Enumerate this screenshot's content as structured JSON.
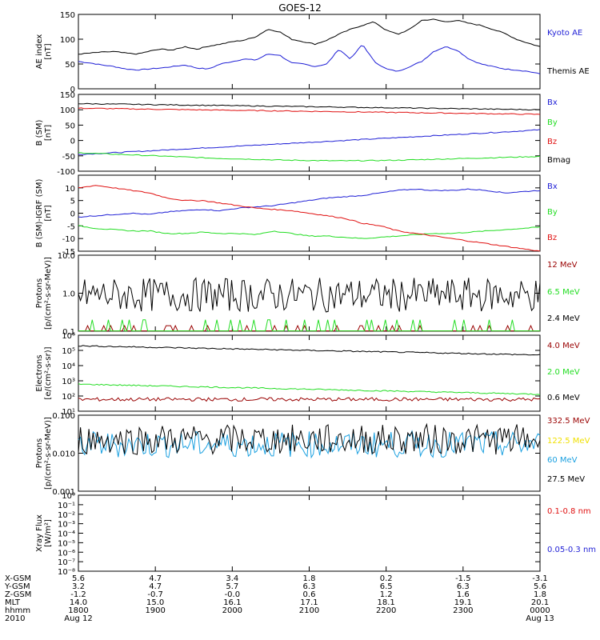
{
  "title": "GOES-12",
  "colors": {
    "black": "#000000",
    "blue": "#1f1fd6",
    "green": "#22dd22",
    "red": "#e01010",
    "darkred": "#990000",
    "cyan": "#1aa0e0",
    "yellow": "#f0e000"
  },
  "chart_data": [
    {
      "type": "line",
      "panel": "ae",
      "ylabel_lines": [
        "AE index",
        "[nT]"
      ],
      "ylim": [
        0,
        150
      ],
      "yticks": [
        "0",
        "50",
        "100",
        "150"
      ],
      "ytick_values": [
        0,
        50,
        100,
        150
      ],
      "series": [
        {
          "name": "Kyoto AE",
          "color": "blue",
          "y": [
            55,
            52,
            48,
            45,
            40,
            38,
            40,
            42,
            45,
            48,
            42,
            40,
            50,
            55,
            60,
            58,
            70,
            68,
            52,
            50,
            45,
            50,
            80,
            60,
            90,
            55,
            40,
            35,
            45,
            55,
            75,
            85,
            78,
            60,
            50,
            45,
            40,
            38,
            35,
            30
          ]
        },
        {
          "name": "Themis AE",
          "color": "black",
          "y": [
            70,
            72,
            74,
            75,
            72,
            70,
            76,
            80,
            78,
            85,
            80,
            86,
            90,
            95,
            98,
            105,
            120,
            115,
            100,
            95,
            90,
            98,
            110,
            120,
            128,
            135,
            118,
            110,
            120,
            138,
            140,
            135,
            138,
            132,
            128,
            120,
            112,
            100,
            92,
            85
          ]
        }
      ]
    },
    {
      "type": "line",
      "panel": "bsm",
      "ylabel_lines": [
        "B (SM)",
        "[nT]"
      ],
      "ylim": [
        -100,
        150
      ],
      "yticks": [
        "-100",
        "-50",
        "0",
        "50",
        "100",
        "150"
      ],
      "ytick_values": [
        -100,
        -50,
        0,
        50,
        100,
        150
      ],
      "series": [
        {
          "name": "Bx",
          "color": "blue",
          "y": [
            -45,
            -42,
            -38,
            -34,
            -30,
            -26,
            -22,
            -18,
            -14,
            -10,
            -6,
            -2,
            2,
            6,
            10,
            14,
            18,
            22,
            26,
            30,
            35
          ]
        },
        {
          "name": "By",
          "color": "green",
          "y": [
            -40,
            -43,
            -46,
            -49,
            -52,
            -55,
            -58,
            -60,
            -62,
            -64,
            -65,
            -66,
            -66,
            -65,
            -64,
            -62,
            -60,
            -58,
            -56,
            -54,
            -52
          ]
        },
        {
          "name": "Bz",
          "color": "red",
          "y": [
            105,
            104,
            103,
            102,
            101,
            100,
            99,
            98,
            97,
            96,
            95,
            94,
            93,
            92,
            91,
            90,
            89,
            88,
            87,
            86,
            85
          ]
        },
        {
          "name": "Bmag",
          "color": "black",
          "y": [
            120,
            119,
            118,
            117,
            116,
            115,
            114,
            113,
            112,
            111,
            110,
            109,
            108,
            107,
            106,
            105,
            104,
            103,
            102,
            101,
            100
          ]
        }
      ]
    },
    {
      "type": "line",
      "panel": "bsmigrf",
      "ylabel_lines": [
        "B (SM)-IGRF (SM)",
        "[nT]"
      ],
      "ylim": [
        -15,
        15
      ],
      "yticks": [
        "-15",
        "-10",
        "-5",
        "0",
        "5",
        "10"
      ],
      "ytick_values": [
        -15,
        -10,
        -5,
        0,
        5,
        10
      ],
      "series": [
        {
          "name": "Bx",
          "color": "blue",
          "y": [
            -1.5,
            -1,
            -0.5,
            0,
            -0.5,
            0.5,
            1,
            1.5,
            1,
            2,
            2.5,
            3,
            4,
            5,
            6,
            6.5,
            7,
            8,
            9,
            9.5,
            9,
            9,
            9.5,
            9,
            8,
            8.5,
            9
          ]
        },
        {
          "name": "By",
          "color": "green",
          "y": [
            -5,
            -6,
            -6.5,
            -7,
            -7,
            -8,
            -8,
            -7.5,
            -8,
            -8,
            -8.5,
            -7,
            -8,
            -9,
            -9,
            -9.5,
            -10,
            -9.5,
            -9,
            -8.5,
            -8,
            -8,
            -7.5,
            -7,
            -6.5,
            -6,
            -5.5
          ]
        },
        {
          "name": "Bz",
          "color": "red",
          "y": [
            10,
            11,
            10,
            9,
            8,
            6,
            5,
            5,
            4,
            3,
            2,
            1.5,
            1,
            0,
            -1,
            -2,
            -4,
            -5,
            -7,
            -8,
            -9,
            -10,
            -11,
            -12,
            -13,
            -14,
            -15
          ]
        }
      ]
    },
    {
      "type": "line",
      "panel": "protons1",
      "log": true,
      "ylabel_lines": [
        "Protons",
        "[p/(cm²-s-sr-MeV)]"
      ],
      "ylim": [
        0.1,
        10.0
      ],
      "yticks": [
        "0.1",
        "1.0",
        "10.0"
      ],
      "ytick_values": [
        0.1,
        1.0,
        10.0
      ],
      "series": [
        {
          "name": "12 MeV",
          "color": "darkred",
          "pattern": "sparse",
          "base": 0.1,
          "peak": 0.14
        },
        {
          "name": "6.5 MeV",
          "color": "green",
          "pattern": "sparse",
          "base": 0.1,
          "peak": 0.2
        },
        {
          "name": "2.4 MeV",
          "color": "black",
          "pattern": "noise",
          "center": 0.9,
          "spread": 0.45
        }
      ]
    },
    {
      "type": "line",
      "panel": "electrons",
      "log": true,
      "ylabel_lines": [
        "Electrons",
        "[e/(cm²-s-sr)]"
      ],
      "ylim": [
        10,
        1000000
      ],
      "yticks": [
        "10¹",
        "10²",
        "10³",
        "10⁴",
        "10⁵",
        "10⁶"
      ],
      "ytick_values": [
        10,
        100,
        1000,
        10000,
        100000,
        1000000
      ],
      "series": [
        {
          "name": "4.0 MeV",
          "color": "darkred",
          "pattern": "noise",
          "center": 60,
          "spread": 0.12
        },
        {
          "name": "2.0 MeV",
          "color": "green",
          "pattern": "decay",
          "start": 600,
          "end": 130
        },
        {
          "name": "0.6 MeV",
          "color": "black",
          "pattern": "decay",
          "start": 200000,
          "end": 50000
        }
      ]
    },
    {
      "type": "line",
      "panel": "protons2",
      "log": true,
      "ylabel_lines": [
        "Protons",
        "[p/(cm²-s-sr-MeV)]"
      ],
      "ylim": [
        0.001,
        0.1
      ],
      "yticks": [
        "0.001",
        "0.010",
        "0.100"
      ],
      "ytick_values": [
        0.001,
        0.01,
        0.1
      ],
      "series": [
        {
          "name": "332.5 MeV",
          "color": "darkred",
          "pattern": "none"
        },
        {
          "name": "122.5 MeV",
          "color": "yellow",
          "pattern": "none"
        },
        {
          "name": "60 MeV",
          "color": "cyan",
          "pattern": "noise",
          "center": 0.017,
          "spread": 0.35
        },
        {
          "name": "27.5 MeV",
          "color": "black",
          "pattern": "noise",
          "center": 0.023,
          "spread": 0.4
        }
      ]
    },
    {
      "type": "line",
      "panel": "xray",
      "log": true,
      "ylabel_lines": [
        "Xray Flux",
        "[W/m²]"
      ],
      "ylim": [
        1e-08,
        1
      ],
      "yticks": [
        "10⁻⁸",
        "10⁻⁷",
        "10⁻⁶",
        "10⁻⁵",
        "10⁻⁴",
        "10⁻³",
        "10⁻²",
        "10⁻¹",
        "10⁰"
      ],
      "ytick_values": [
        1e-08,
        1e-07,
        1e-06,
        1e-05,
        0.0001,
        0.001,
        0.01,
        0.1,
        1
      ],
      "series": [
        {
          "name": "0.1-0.8 nm",
          "color": "red",
          "pattern": "none"
        },
        {
          "name": "0.05-0.3 nm",
          "color": "blue",
          "pattern": "none"
        }
      ]
    }
  ],
  "footer": {
    "row_labels": [
      "X-GSM",
      "Y-GSM",
      "Z-GSM",
      "MLT",
      "hhmm",
      "2010"
    ],
    "columns": [
      {
        "values": [
          "5.6",
          "3.2",
          "-1.2",
          "14.0",
          "1800",
          "Aug 12"
        ]
      },
      {
        "values": [
          "4.7",
          "4.7",
          "-0.7",
          "15.0",
          "1900",
          ""
        ]
      },
      {
        "values": [
          "3.4",
          "5.7",
          "-0.0",
          "16.1",
          "2000",
          ""
        ]
      },
      {
        "values": [
          "1.8",
          "6.3",
          "0.6",
          "17.1",
          "2100",
          ""
        ]
      },
      {
        "values": [
          "0.2",
          "6.5",
          "1.2",
          "18.1",
          "2200",
          ""
        ]
      },
      {
        "values": [
          "-1.5",
          "6.3",
          "1.6",
          "19.1",
          "2300",
          ""
        ]
      },
      {
        "values": [
          "-3.1",
          "5.6",
          "1.8",
          "20.1",
          "0000",
          "Aug 13"
        ]
      }
    ]
  }
}
